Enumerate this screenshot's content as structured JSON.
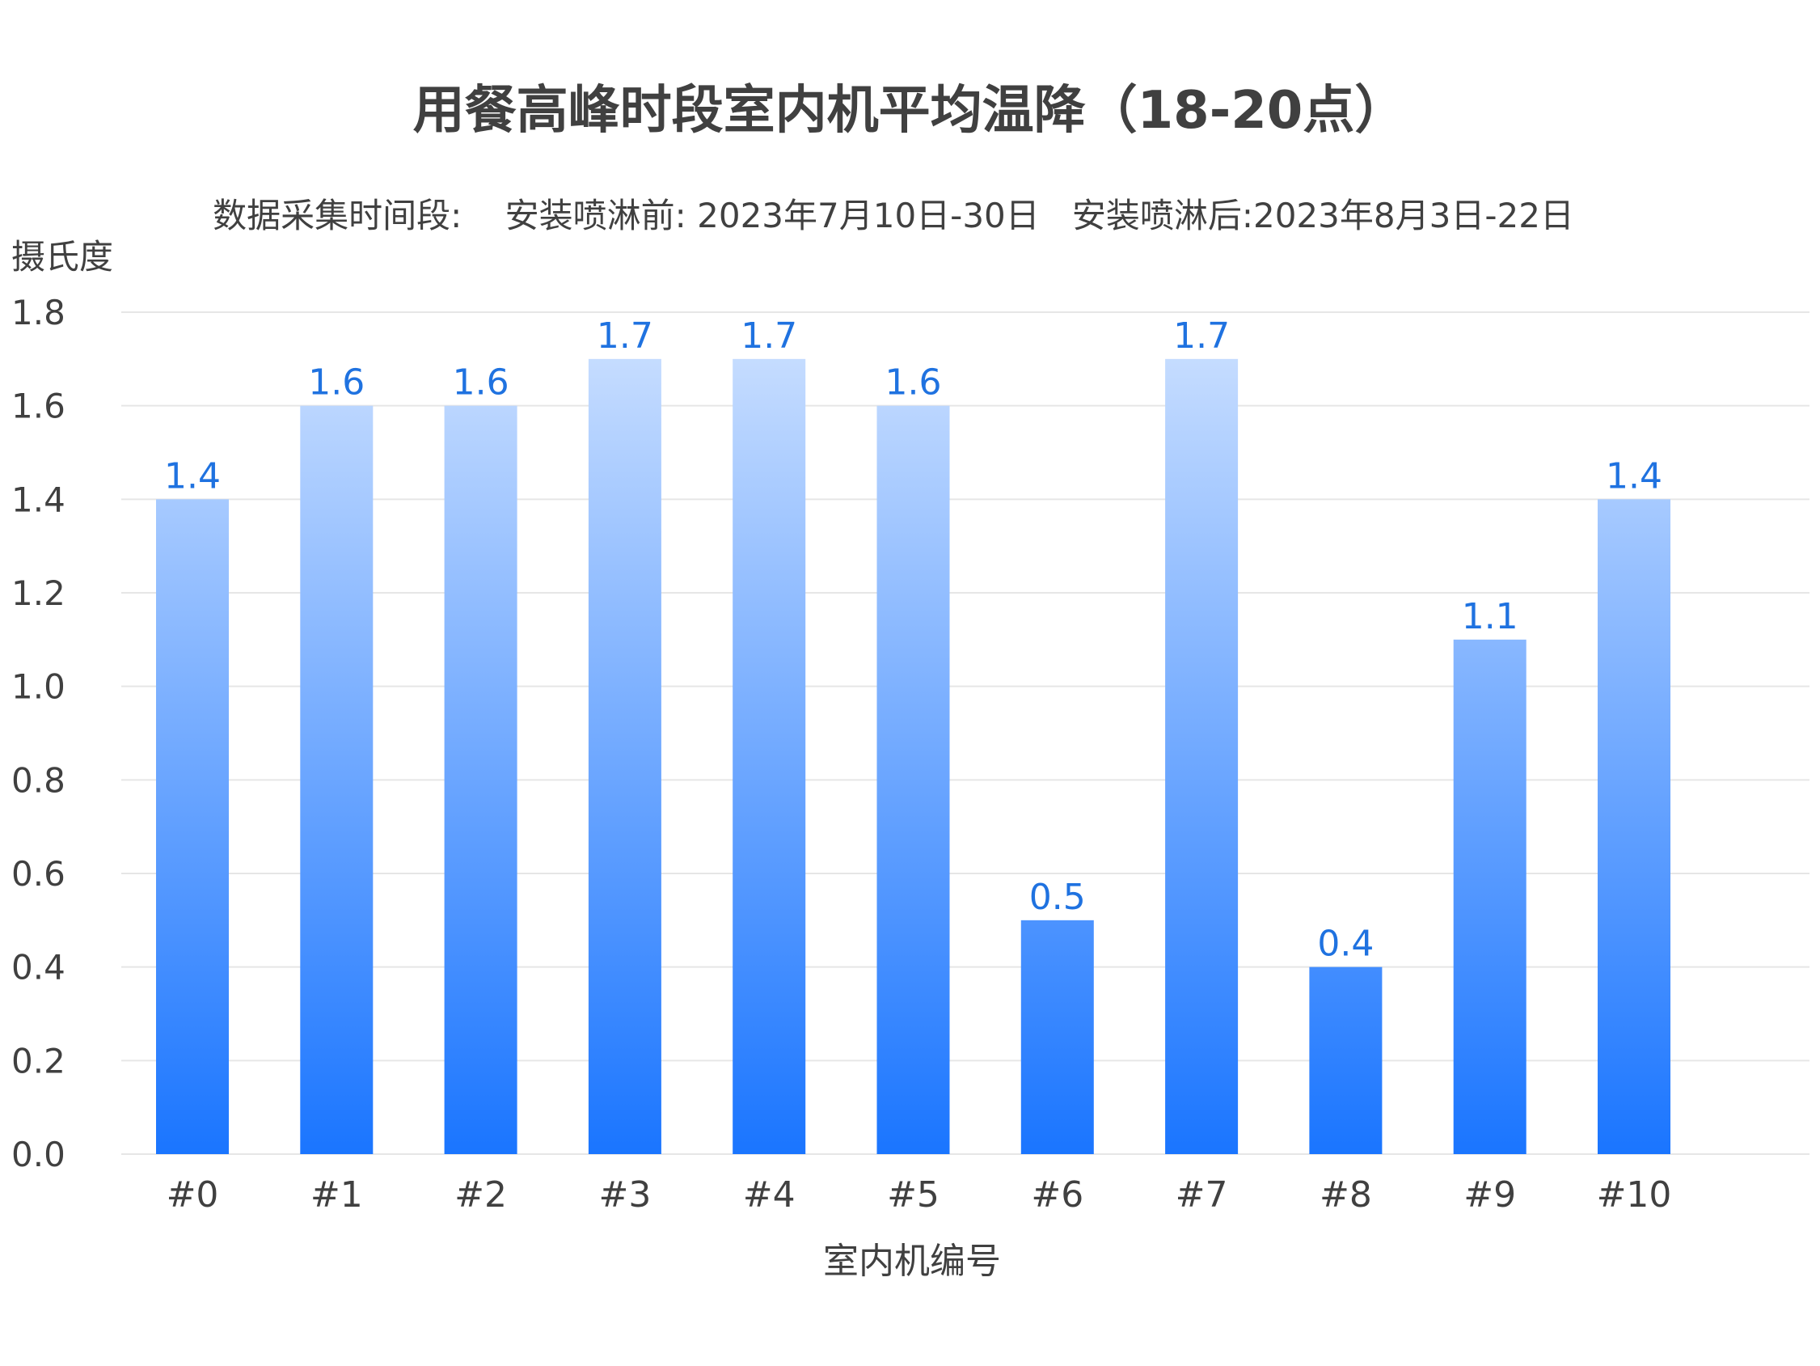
{
  "chart_data": {
    "type": "bar",
    "title": "用餐高峰时段室内机平均温降（18-20点）",
    "subtitle": "数据采集时间段:    安装喷淋前: 2023年7月10日-30日   安装喷淋后:2023年8月3日-22日",
    "xlabel": "室内机编号",
    "ylabel": "摄氏度",
    "categories": [
      "#0",
      "#1",
      "#2",
      "#3",
      "#4",
      "#5",
      "#6",
      "#7",
      "#8",
      "#9",
      "#10"
    ],
    "values": [
      1.4,
      1.6,
      1.6,
      1.7,
      1.7,
      1.6,
      0.5,
      1.7,
      0.4,
      1.1,
      1.4
    ],
    "data_labels": [
      "1.4",
      "1.6",
      "1.6",
      "1.7",
      "1.7",
      "1.6",
      "0.5",
      "1.7",
      "0.4",
      "1.1",
      "1.4"
    ],
    "ylim": [
      0,
      1.8
    ],
    "yticks": [
      0.0,
      0.2,
      0.4,
      0.6,
      0.8,
      1.0,
      1.2,
      1.4,
      1.6,
      1.8
    ],
    "ytick_labels": [
      "0.0",
      "0.2",
      "0.4",
      "0.6",
      "0.8",
      "1.0",
      "1.2",
      "1.4",
      "1.6",
      "1.8"
    ],
    "grid": true,
    "legend": "none"
  },
  "colors": {
    "bar_top": "#cfe2ff",
    "bar_bottom": "#1a75ff",
    "label": "#1f72e0",
    "text": "#404040",
    "grid": "#e6e6e6"
  }
}
